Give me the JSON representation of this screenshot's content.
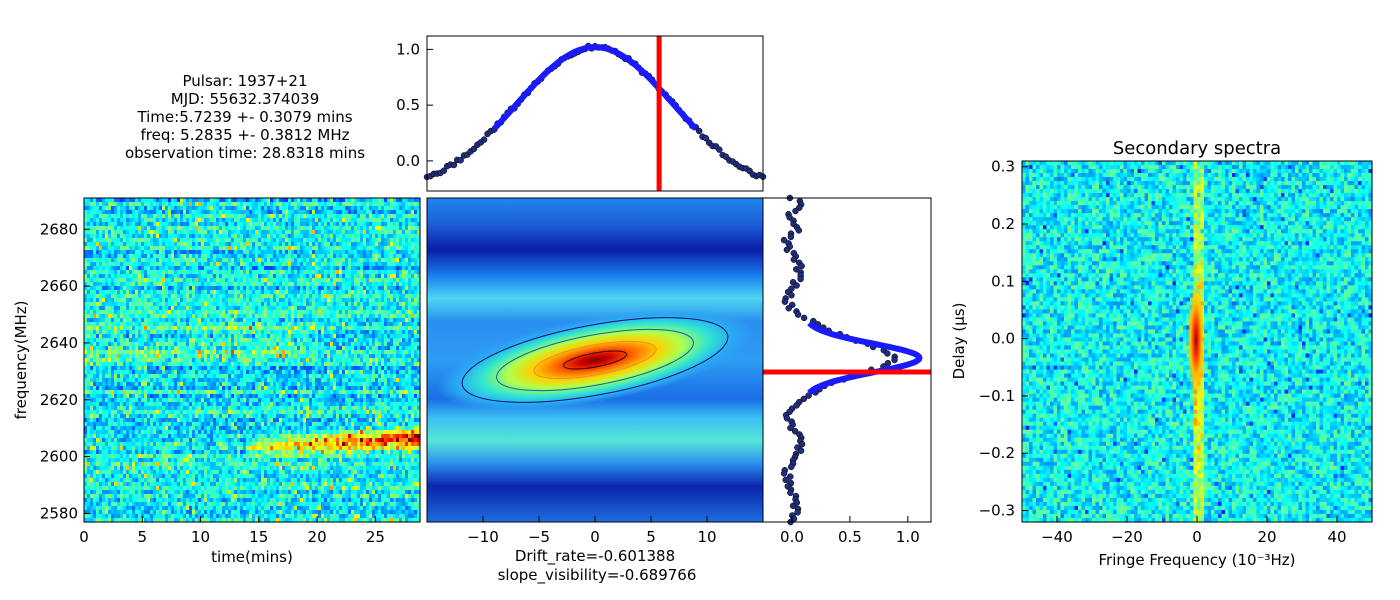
{
  "info_block": {
    "pulsar": "Pulsar: 1937+21",
    "mjd": "MJD: 55632.374039",
    "time": "Time:5.7239 +- 0.3079 mins",
    "freq": "freq: 5.2835 +- 0.3812 MHz",
    "obs_time": "observation time: 28.8318 mins"
  },
  "colors": {
    "fit": "#1a1aff",
    "marker": "#ff0000",
    "points": "#1f2d7a"
  },
  "chart_data": [
    {
      "id": "dynamic_spectrum",
      "type": "heatmap",
      "title": "",
      "xlabel": "time(mins)",
      "ylabel": "frequency(MHz)",
      "xlim": [
        0,
        28.83
      ],
      "ylim": [
        2577,
        2691
      ],
      "xticks": [
        0,
        5,
        10,
        15,
        20,
        25
      ],
      "yticks": [
        2580,
        2600,
        2620,
        2640,
        2660,
        2680
      ],
      "colormap": "jet"
    },
    {
      "id": "autocorrelation_2d",
      "type": "heatmap",
      "title": "",
      "xlabel": "Drift_rate=-0.601388",
      "xlabel2": "slope_visibility=-0.689766",
      "xlim": [
        -15,
        15
      ],
      "xticks": [
        -10,
        -5,
        0,
        5,
        10
      ],
      "colormap": "jet",
      "contours": true
    },
    {
      "id": "time_profile",
      "type": "line",
      "title": "",
      "xlim": [
        -15,
        15
      ],
      "ylim": [
        -0.27,
        1.12
      ],
      "yticks": [
        0.0,
        0.5,
        1.0
      ],
      "series": [],
      "fit": {
        "amplitude": 1.3,
        "sigma": 7.0,
        "offset": -0.28,
        "x_range": [
          -9,
          9
        ]
      },
      "marker_x": 5.7239
    },
    {
      "id": "freq_profile",
      "type": "line",
      "title": "",
      "xlim": [
        -0.25,
        1.2
      ],
      "xticks": [
        0.0,
        0.5,
        1.0
      ],
      "fit": {
        "amplitude": 1.0,
        "width_frac": 0.04,
        "offset": 0.0
      },
      "marker_level": 0.5
    },
    {
      "id": "secondary_spectrum",
      "type": "heatmap",
      "title": "Secondary spectra",
      "xlabel": "Fringe Frequency (10⁻³Hz)",
      "ylabel": "Delay (μs)",
      "xlim": [
        -50,
        50
      ],
      "ylim": [
        -0.32,
        0.31
      ],
      "xticks": [
        -40,
        -20,
        0,
        20,
        40
      ],
      "yticks": [
        -0.3,
        -0.2,
        -0.1,
        0.0,
        0.1,
        0.2,
        0.3
      ],
      "colormap": "jet"
    }
  ]
}
